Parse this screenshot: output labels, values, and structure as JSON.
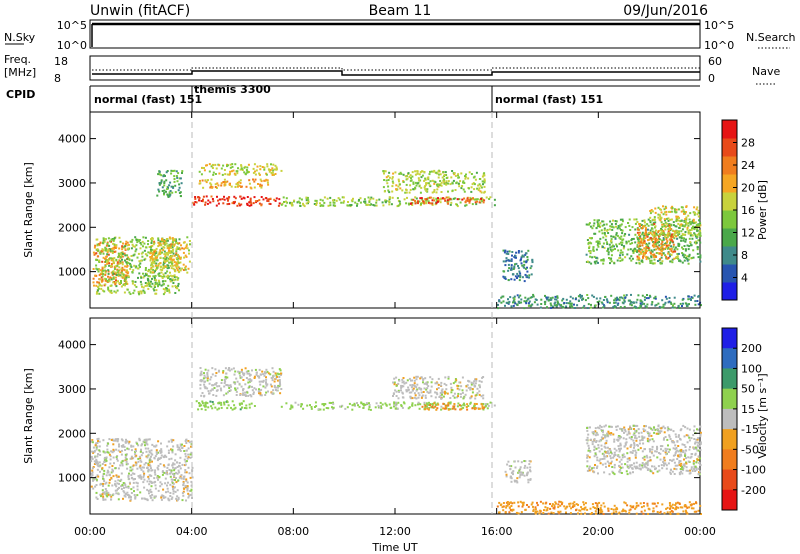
{
  "header": {
    "station": "Unwin (fitACF)",
    "beam": "Beam 11",
    "date": "09/Jun/2016"
  },
  "top_panels": {
    "nsky_label": "N.Sky",
    "nsky_ticks": [
      "10^5",
      "10^0"
    ],
    "nsearch_label": "N.Search",
    "nsearch_ticks": [
      "10^5",
      "10^0"
    ],
    "freq_label": "Freq.",
    "freq_unit": "[MHz]",
    "freq_ticks": [
      "18",
      "8"
    ],
    "nave_label": "Nave",
    "nave_ticks": [
      "60",
      "0"
    ],
    "cpid_label": "CPID"
  },
  "cpid_segments": [
    {
      "label": "normal (fast) 151",
      "start_h": 0,
      "end_h": 4
    },
    {
      "label": "themis 3300",
      "start_h": 4,
      "end_h": 16
    },
    {
      "label": "normal (fast) 151",
      "start_h": 16,
      "end_h": 24
    }
  ],
  "x_ticks": [
    "00:00",
    "04:00",
    "08:00",
    "12:00",
    "16:00",
    "20:00",
    "00:00"
  ],
  "x_label": "Time UT",
  "chart_data": [
    {
      "type": "heatmap",
      "name": "power",
      "ylabel": "Slant Range [km]",
      "yticks": [
        1000,
        2000,
        3000,
        4000
      ],
      "ylim": [
        180,
        4600
      ],
      "xlim_hours": [
        0,
        24
      ],
      "colorbar": {
        "label": "Power [dB]",
        "ticks": [
          "4",
          "8",
          "12",
          "16",
          "20",
          "24",
          "28"
        ],
        "colors": [
          "#1f1fe6",
          "#2855b0",
          "#3f8a8a",
          "#4aa84a",
          "#7cc83c",
          "#c8d23c",
          "#f5a623",
          "#f07d1e",
          "#e84a1a",
          "#e61414"
        ]
      },
      "regions": [
        {
          "t": [
            0.1,
            1.5
          ],
          "r": [
            700,
            1700
          ],
          "v": 22
        },
        {
          "t": [
            0.2,
            3.5
          ],
          "r": [
            500,
            1800
          ],
          "v": 14
        },
        {
          "t": [
            2.3,
            3.9
          ],
          "r": [
            1000,
            1800
          ],
          "v": 18
        },
        {
          "t": [
            2.6,
            3.6
          ],
          "r": [
            2700,
            3300
          ],
          "v": 10
        },
        {
          "t": [
            4.0,
            7.5
          ],
          "r": [
            2500,
            2720
          ],
          "v": 28
        },
        {
          "t": [
            4.2,
            7.0
          ],
          "r": [
            2900,
            3100
          ],
          "v": 20
        },
        {
          "t": [
            4.2,
            7.5
          ],
          "r": [
            3200,
            3450
          ],
          "v": 16
        },
        {
          "t": [
            7.5,
            15.9
          ],
          "r": [
            2500,
            2700
          ],
          "v": 14
        },
        {
          "t": [
            11.5,
            15.5
          ],
          "r": [
            2800,
            3300
          ],
          "v": 15
        },
        {
          "t": [
            12.5,
            15.5
          ],
          "r": [
            2550,
            2700
          ],
          "v": 26
        },
        {
          "t": [
            16.0,
            24.0
          ],
          "r": [
            200,
            500
          ],
          "v": 8
        },
        {
          "t": [
            16.2,
            17.4
          ],
          "r": [
            800,
            1500
          ],
          "v": 6
        },
        {
          "t": [
            19.5,
            24.0
          ],
          "r": [
            1200,
            2200
          ],
          "v": 12
        },
        {
          "t": [
            21.5,
            23.0
          ],
          "r": [
            1300,
            2100
          ],
          "v": 22
        },
        {
          "t": [
            22.0,
            24.0
          ],
          "r": [
            1800,
            2500
          ],
          "v": 16
        }
      ]
    },
    {
      "type": "heatmap",
      "name": "velocity",
      "ylabel": "Slant Range [km]",
      "yticks": [
        1000,
        2000,
        3000,
        4000
      ],
      "ylim": [
        180,
        4600
      ],
      "xlim_hours": [
        0,
        24
      ],
      "colorbar": {
        "label": "Velocity [m s⁻¹]",
        "ticks": [
          "200",
          "100",
          "50",
          "15",
          "-15",
          "-50",
          "-100",
          "-200"
        ],
        "colors": [
          "#1f1fe6",
          "#2e6cbf",
          "#3c9a6a",
          "#8fd14f",
          "#bdbdbd",
          "#f0a020",
          "#f07d1e",
          "#e84a1a",
          "#e61414"
        ]
      },
      "regions": [
        {
          "t": [
            0.0,
            4.0
          ],
          "r": [
            500,
            1900
          ],
          "v": 0
        },
        {
          "t": [
            4.1,
            6.5
          ],
          "r": [
            2550,
            2750
          ],
          "v": 35
        },
        {
          "t": [
            4.3,
            7.5
          ],
          "r": [
            2850,
            3500
          ],
          "v": 0
        },
        {
          "t": [
            7.5,
            15.9
          ],
          "r": [
            2550,
            2720
          ],
          "v": 30
        },
        {
          "t": [
            11.8,
            15.5
          ],
          "r": [
            2800,
            3300
          ],
          "v": 0
        },
        {
          "t": [
            13.0,
            15.5
          ],
          "r": [
            2550,
            2700
          ],
          "v": -45
        },
        {
          "t": [
            16.0,
            24.0
          ],
          "r": [
            200,
            480
          ],
          "v": -40
        },
        {
          "t": [
            19.5,
            24.0
          ],
          "r": [
            1100,
            2200
          ],
          "v": 0
        },
        {
          "t": [
            16.3,
            17.3
          ],
          "r": [
            900,
            1400
          ],
          "v": 0
        }
      ]
    }
  ]
}
